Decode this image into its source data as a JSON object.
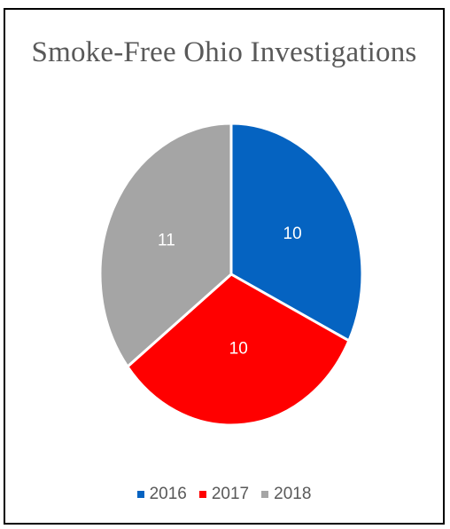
{
  "chart_data": {
    "type": "pie",
    "title": "Smoke-Free Ohio Investigations",
    "categories": [
      "2016",
      "2017",
      "2018"
    ],
    "values": [
      10,
      10,
      11
    ],
    "colors": [
      "#0563c1",
      "#ff0000",
      "#a5a5a5"
    ],
    "data_labels": [
      "10",
      "10",
      "11"
    ],
    "legend_position": "bottom"
  }
}
